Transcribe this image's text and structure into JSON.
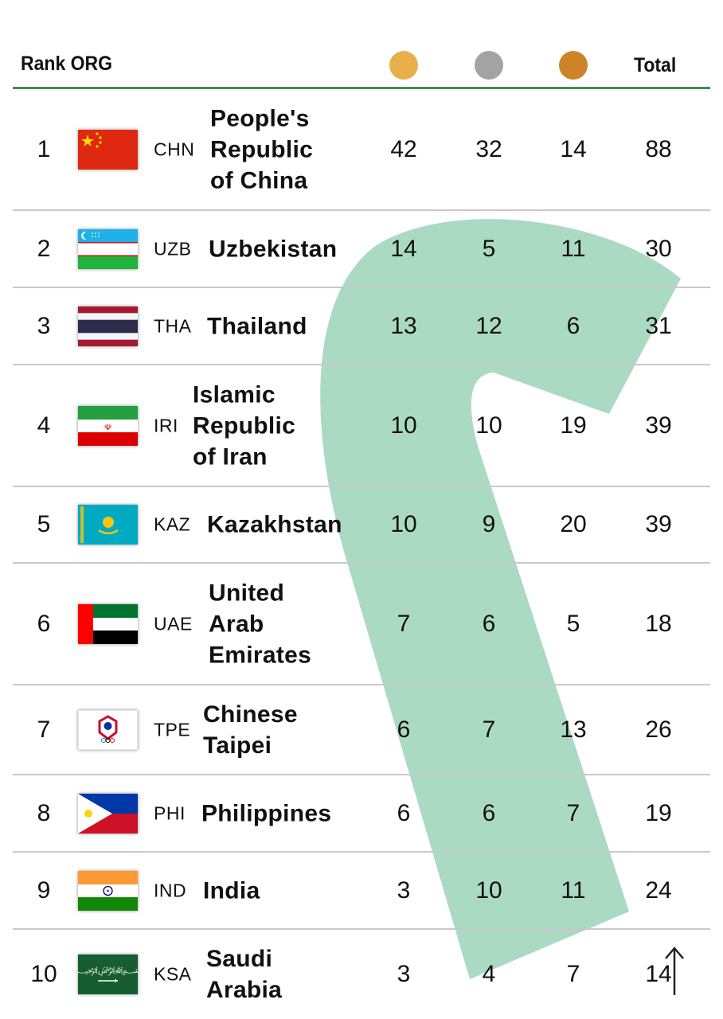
{
  "header": {
    "rank_org_label": "Rank ORG",
    "total_label": "Total",
    "medal_colors": {
      "gold": "#e8b04a",
      "silver": "#a3a3a3",
      "bronze": "#cd8429"
    }
  },
  "accent_color": "#3f8a55",
  "rows": [
    {
      "rank": "1",
      "code": "CHN",
      "name": "People's\nRepublic\nof China",
      "gold": "42",
      "silver": "32",
      "bronze": "14",
      "total": "88",
      "flag": "china-flag"
    },
    {
      "rank": "2",
      "code": "UZB",
      "name": "Uzbekistan",
      "gold": "14",
      "silver": "5",
      "bronze": "11",
      "total": "30",
      "flag": "uzbekistan-flag"
    },
    {
      "rank": "3",
      "code": "THA",
      "name": "Thailand",
      "gold": "13",
      "silver": "12",
      "bronze": "6",
      "total": "31",
      "flag": "thailand-flag"
    },
    {
      "rank": "4",
      "code": "IRI",
      "name": "Islamic\nRepublic\nof Iran",
      "gold": "10",
      "silver": "10",
      "bronze": "19",
      "total": "39",
      "flag": "iran-flag"
    },
    {
      "rank": "5",
      "code": "KAZ",
      "name": "Kazakhstan",
      "gold": "10",
      "silver": "9",
      "bronze": "20",
      "total": "39",
      "flag": "kazakhstan-flag"
    },
    {
      "rank": "6",
      "code": "UAE",
      "name": "United\nArab\nEmirates",
      "gold": "7",
      "silver": "6",
      "bronze": "5",
      "total": "18",
      "flag": "uae-flag"
    },
    {
      "rank": "7",
      "code": "TPE",
      "name": "Chinese\nTaipei",
      "gold": "6",
      "silver": "7",
      "bronze": "13",
      "total": "26",
      "flag": "chinese-taipei-flag"
    },
    {
      "rank": "8",
      "code": "PHI",
      "name": "Philippines",
      "gold": "6",
      "silver": "6",
      "bronze": "7",
      "total": "19",
      "flag": "philippines-flag"
    },
    {
      "rank": "9",
      "code": "IND",
      "name": "India",
      "gold": "3",
      "silver": "10",
      "bronze": "11",
      "total": "24",
      "flag": "india-flag"
    },
    {
      "rank": "10",
      "code": "KSA",
      "name": "Saudi\nArabia",
      "gold": "3",
      "silver": "4",
      "bronze": "7",
      "total": "14",
      "flag": "saudi-arabia-flag"
    }
  ]
}
